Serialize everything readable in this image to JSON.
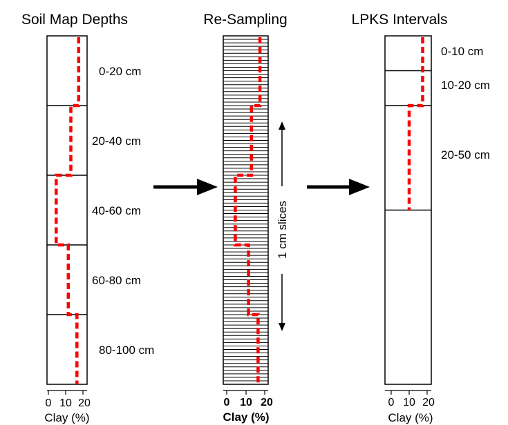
{
  "colors": {
    "profile": "#ff0000",
    "outline": "#000000",
    "background": "#ffffff"
  },
  "panels": [
    {
      "title": "Soil Map Depths",
      "depth_max_cm": 100,
      "horizons": [
        {
          "label": "0-20 cm",
          "top": 0,
          "bottom": 20,
          "clay": 17.5
        },
        {
          "label": "20-40 cm",
          "top": 20,
          "bottom": 40,
          "clay": 13
        },
        {
          "label": "40-60 cm",
          "top": 40,
          "bottom": 60,
          "clay": 4.5
        },
        {
          "label": "60-80 cm",
          "top": 60,
          "bottom": 80,
          "clay": 11.5
        },
        {
          "label": "80-100 cm",
          "top": 80,
          "bottom": 100,
          "clay": 16.5
        }
      ],
      "x_ticks": [
        "0",
        "10",
        "20"
      ],
      "x_label": "Clay (%)"
    },
    {
      "title": "Re-Sampling",
      "depth_max_cm": 100,
      "slice_thickness_cm": 1,
      "clay_by_interval": [
        {
          "top": 0,
          "bottom": 20,
          "clay": 17.5
        },
        {
          "top": 20,
          "bottom": 40,
          "clay": 13
        },
        {
          "top": 40,
          "bottom": 60,
          "clay": 4.5
        },
        {
          "top": 60,
          "bottom": 80,
          "clay": 11.5
        },
        {
          "top": 80,
          "bottom": 100,
          "clay": 16.5
        }
      ],
      "slices_label": "1 cm slices",
      "x_ticks": [
        "0",
        "10",
        "20"
      ],
      "x_label": "Clay (%)"
    },
    {
      "title": "LPKS Intervals",
      "depth_max_cm": 100,
      "horizons": [
        {
          "label": "0-10 cm",
          "top": 0,
          "bottom": 10,
          "clay": 17.5
        },
        {
          "label": "10-20 cm",
          "top": 10,
          "bottom": 20,
          "clay": 17.5
        },
        {
          "label": "20-50 cm",
          "top": 20,
          "bottom": 50,
          "clay": 10
        }
      ],
      "x_ticks": [
        "0",
        "10",
        "20"
      ],
      "x_label": "Clay (%)"
    }
  ]
}
